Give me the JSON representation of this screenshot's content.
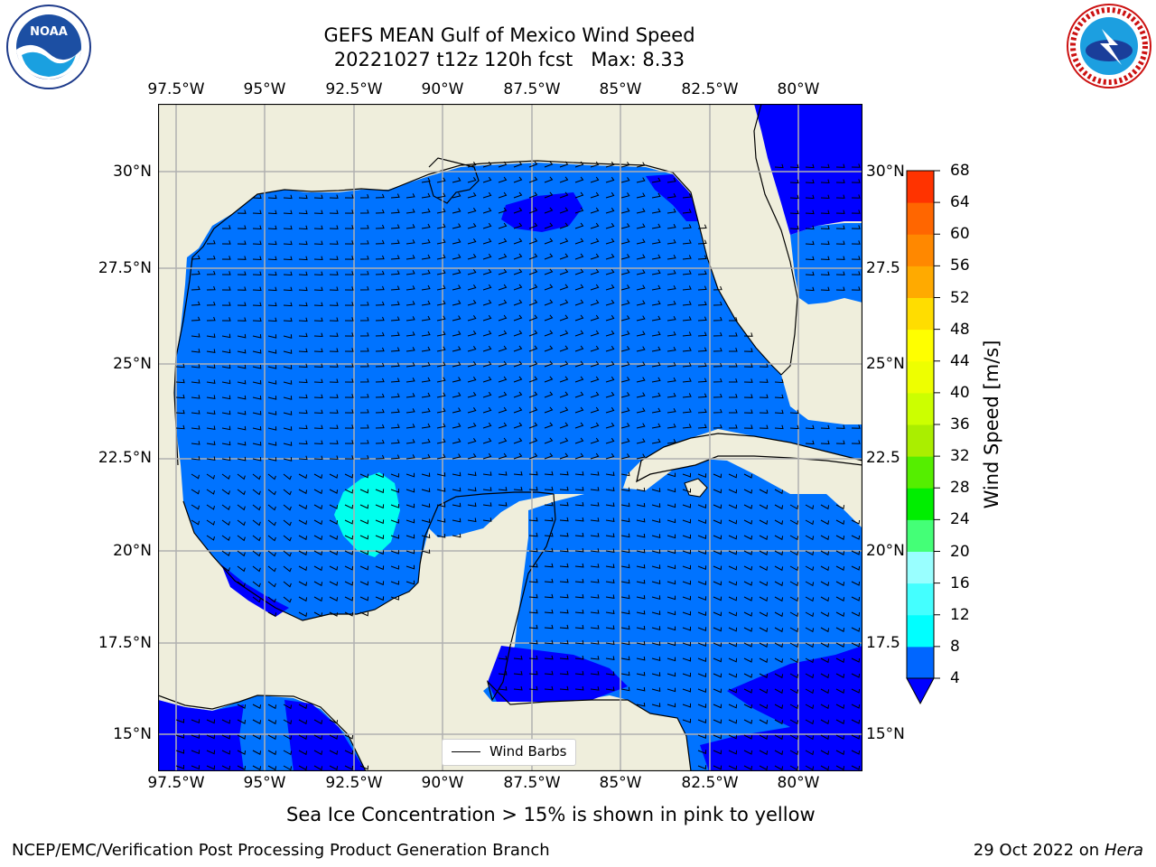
{
  "title": {
    "line1": "GEFS MEAN Gulf of Mexico Wind Speed",
    "line2": "20221027 t12z 120h fcst   Max: 8.33"
  },
  "lon_ticks": [
    "97.5°W",
    "95°W",
    "92.5°W",
    "90°W",
    "87.5°W",
    "85°W",
    "82.5°W",
    "80°W"
  ],
  "lat_ticks": [
    "30°N",
    "27.5°N",
    "25°N",
    "22.5°N",
    "20°N",
    "17.5°N",
    "15°N"
  ],
  "lat_ticks_right": [
    "30°N",
    "27.5",
    "25°N",
    "22.5",
    "20°N",
    "17.5",
    "15°N"
  ],
  "colorbar": {
    "label": "Wind Speed [m/s]",
    "levels": [
      "4",
      "8",
      "12",
      "16",
      "20",
      "24",
      "28",
      "32",
      "36",
      "40",
      "44",
      "48",
      "52",
      "56",
      "60",
      "64",
      "68"
    ],
    "colors": [
      "#0066ff",
      "#00ffff",
      "#44ffff",
      "#99ffff",
      "#44ff77",
      "#00ee00",
      "#55ee00",
      "#aaee00",
      "#ccff00",
      "#eeff00",
      "#ffff00",
      "#ffdd00",
      "#ffaa00",
      "#ff8800",
      "#ff6600",
      "#ff3300",
      "#ff0000"
    ],
    "extend_color": "#0000ff"
  },
  "legend": {
    "label": "Wind Barbs"
  },
  "subtitle": "Sea Ice Concentration > 15% is shown in pink to yellow",
  "footer": {
    "left": "NCEP/EMC/Verification Post Processing Product Generation Branch",
    "right_prefix": "29 Oct 2022 on ",
    "right_host": "Hera"
  },
  "map_colors": {
    "land": "#efeedc",
    "wind_4_8": "#0073ff",
    "wind_lt_4": "#0000ff",
    "wind_8_12": "#00ffee"
  },
  "logos": {
    "left": "noaa-logo",
    "right": "nws-logo"
  }
}
